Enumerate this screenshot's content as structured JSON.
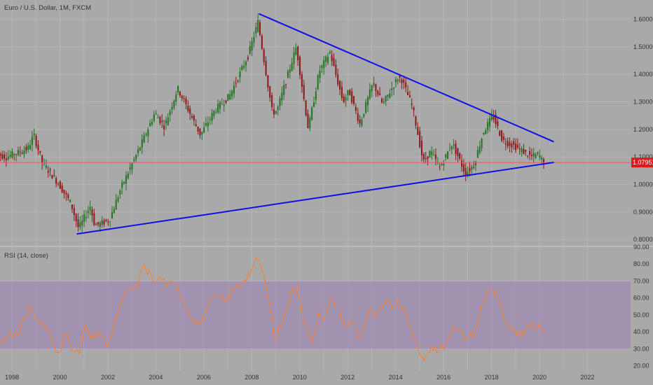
{
  "chart_data": [
    {
      "type": "candlestick",
      "title": "Euro / U.S. Dollar, 1M, FXCM",
      "ylim": [
        0.78,
        1.67
      ],
      "xlim": [
        1997.5,
        2023.8
      ],
      "y_ticks": [
        "1.60000",
        "1.50000",
        "1.40000",
        "1.30000",
        "1.20000",
        "1.10000",
        "1.00000",
        "0.90000",
        "0.80000"
      ],
      "y_tick_values": [
        1.6,
        1.5,
        1.4,
        1.3,
        1.2,
        1.1,
        1.0,
        0.9,
        0.8
      ],
      "x_ticks": [
        "1998",
        "2000",
        "2002",
        "2004",
        "2006",
        "2008",
        "2010",
        "2012",
        "2014",
        "2016",
        "2018",
        "2020",
        "2022"
      ],
      "x_tick_values": [
        1998,
        2000,
        2002,
        2004,
        2006,
        2008,
        2010,
        2012,
        2014,
        2016,
        2018,
        2020,
        2022
      ],
      "last_price": "1.07951",
      "last_price_value": 1.0795,
      "price_path": [
        [
          1997.0,
          1.12
        ],
        [
          1997.8,
          1.1
        ],
        [
          1998.7,
          1.13
        ],
        [
          1998.95,
          1.18
        ],
        [
          1999.3,
          1.08
        ],
        [
          2000.0,
          1.0
        ],
        [
          2000.5,
          0.93
        ],
        [
          2000.82,
          0.84
        ],
        [
          2001.3,
          0.92
        ],
        [
          2001.5,
          0.85
        ],
        [
          2002.1,
          0.87
        ],
        [
          2002.6,
          0.99
        ],
        [
          2003.4,
          1.14
        ],
        [
          2004.0,
          1.26
        ],
        [
          2004.4,
          1.21
        ],
        [
          2004.95,
          1.35
        ],
        [
          2005.9,
          1.18
        ],
        [
          2006.5,
          1.27
        ],
        [
          2007.1,
          1.32
        ],
        [
          2007.9,
          1.47
        ],
        [
          2008.3,
          1.59
        ],
        [
          2008.9,
          1.26
        ],
        [
          2009.1,
          1.27
        ],
        [
          2009.9,
          1.5
        ],
        [
          2010.4,
          1.2
        ],
        [
          2010.85,
          1.41
        ],
        [
          2011.3,
          1.48
        ],
        [
          2011.85,
          1.3
        ],
        [
          2012.1,
          1.34
        ],
        [
          2012.55,
          1.22
        ],
        [
          2013.1,
          1.37
        ],
        [
          2013.5,
          1.29
        ],
        [
          2014.15,
          1.39
        ],
        [
          2014.3,
          1.38
        ],
        [
          2014.75,
          1.28
        ],
        [
          2015.2,
          1.08
        ],
        [
          2015.5,
          1.12
        ],
        [
          2015.9,
          1.06
        ],
        [
          2016.4,
          1.15
        ],
        [
          2016.95,
          1.04
        ],
        [
          2017.3,
          1.07
        ],
        [
          2017.7,
          1.19
        ],
        [
          2018.1,
          1.25
        ],
        [
          2018.5,
          1.16
        ],
        [
          2019.0,
          1.14
        ],
        [
          2019.7,
          1.1
        ],
        [
          2020.0,
          1.11
        ],
        [
          2020.2,
          1.08
        ]
      ],
      "trendlines": [
        {
          "from": [
            2008.3,
            1.62
          ],
          "to": [
            2020.6,
            1.155
          ],
          "color": "#1010e6"
        },
        {
          "from": [
            2000.7,
            0.82
          ],
          "to": [
            2020.6,
            1.08
          ],
          "color": "#1010e6"
        }
      ],
      "hline": {
        "y": 1.0795,
        "color": "#e06060"
      },
      "colors": {
        "up": "#267326",
        "down": "#8b1a1a",
        "price_tag": "#d81b1b"
      }
    },
    {
      "type": "line",
      "title": "RSI (14, close)",
      "ylim": [
        17,
        90
      ],
      "y_ticks": [
        "90.00",
        "80.00",
        "70.00",
        "60.00",
        "50.00",
        "40.00",
        "30.00",
        "20.00"
      ],
      "y_tick_values": [
        90,
        80,
        70,
        60,
        50,
        40,
        30,
        20
      ],
      "band": [
        30,
        70
      ],
      "band_color": "#9c86b4",
      "line_color": "#ff7f2a",
      "points": [
        [
          1997.5,
          33
        ],
        [
          1997.9,
          40
        ],
        [
          1998.3,
          38
        ],
        [
          1998.7,
          56
        ],
        [
          1999.0,
          48
        ],
        [
          1999.3,
          44
        ],
        [
          1999.6,
          38
        ],
        [
          1999.9,
          28
        ],
        [
          2000.3,
          39
        ],
        [
          2000.5,
          29
        ],
        [
          2000.8,
          27
        ],
        [
          2001.1,
          44
        ],
        [
          2001.3,
          36
        ],
        [
          2001.6,
          40
        ],
        [
          2001.9,
          32
        ],
        [
          2002.1,
          36
        ],
        [
          2002.5,
          55
        ],
        [
          2002.8,
          64
        ],
        [
          2003.2,
          66
        ],
        [
          2003.5,
          80
        ],
        [
          2003.8,
          73
        ],
        [
          2004.0,
          69
        ],
        [
          2004.2,
          72
        ],
        [
          2004.5,
          68
        ],
        [
          2004.9,
          67
        ],
        [
          2005.2,
          57
        ],
        [
          2005.6,
          47
        ],
        [
          2005.9,
          45
        ],
        [
          2006.2,
          57
        ],
        [
          2006.6,
          61
        ],
        [
          2006.9,
          58
        ],
        [
          2007.3,
          66
        ],
        [
          2007.7,
          71
        ],
        [
          2008.0,
          77
        ],
        [
          2008.25,
          83
        ],
        [
          2008.5,
          74
        ],
        [
          2008.75,
          56
        ],
        [
          2008.95,
          36
        ],
        [
          2009.3,
          46
        ],
        [
          2009.6,
          62
        ],
        [
          2009.9,
          67
        ],
        [
          2010.2,
          45
        ],
        [
          2010.5,
          34
        ],
        [
          2010.8,
          52
        ],
        [
          2011.0,
          47
        ],
        [
          2011.3,
          58
        ],
        [
          2011.6,
          56
        ],
        [
          2011.9,
          43
        ],
        [
          2012.2,
          47
        ],
        [
          2012.5,
          36
        ],
        [
          2012.9,
          53
        ],
        [
          2013.2,
          49
        ],
        [
          2013.6,
          57
        ],
        [
          2014.0,
          55
        ],
        [
          2014.2,
          57
        ],
        [
          2014.5,
          48
        ],
        [
          2014.8,
          36
        ],
        [
          2015.0,
          26
        ],
        [
          2015.2,
          23
        ],
        [
          2015.5,
          32
        ],
        [
          2015.8,
          29
        ],
        [
          2016.1,
          33
        ],
        [
          2016.4,
          43
        ],
        [
          2016.7,
          41
        ],
        [
          2016.95,
          36
        ],
        [
          2017.3,
          39
        ],
        [
          2017.6,
          57
        ],
        [
          2017.9,
          64
        ],
        [
          2018.05,
          66
        ],
        [
          2018.3,
          58
        ],
        [
          2018.6,
          46
        ],
        [
          2018.9,
          43
        ],
        [
          2019.2,
          37
        ],
        [
          2019.5,
          44
        ],
        [
          2019.8,
          42
        ],
        [
          2020.0,
          45
        ],
        [
          2020.2,
          39
        ]
      ]
    }
  ]
}
